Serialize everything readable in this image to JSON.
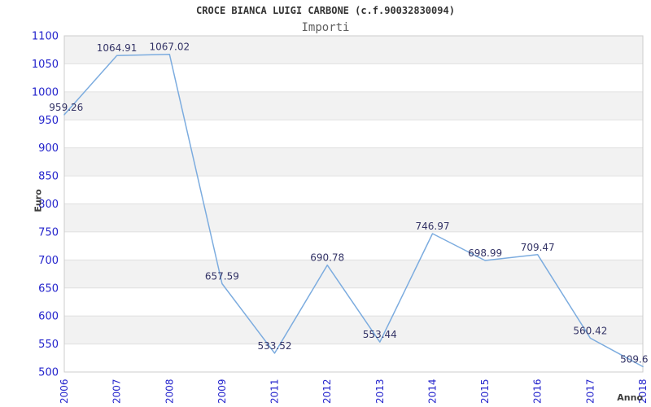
{
  "header": {
    "title": "CROCE BIANCA LUIGI CARBONE (c.f.90032830094)",
    "subtitle": "Importi"
  },
  "chart_data": {
    "type": "line",
    "title": "CROCE BIANCA LUIGI CARBONE (c.f.90032830094)",
    "subtitle": "Importi",
    "xlabel": "Anno",
    "ylabel": "Euro",
    "categories": [
      "2006",
      "2007",
      "2008",
      "2009",
      "2011",
      "2012",
      "2013",
      "2014",
      "2015",
      "2016",
      "2017",
      "2018"
    ],
    "values": [
      959.26,
      1064.91,
      1067.02,
      657.59,
      533.52,
      690.78,
      553.44,
      746.97,
      698.99,
      709.47,
      560.42,
      509.6
    ],
    "point_labels": [
      "959.26",
      "1064.91",
      "1067.02",
      "657.59",
      "533.52",
      "690.78",
      "553.44",
      "746.97",
      "698.99",
      "709.47",
      "560.42",
      "509.6"
    ],
    "ylim": [
      500,
      1100
    ],
    "ytick_step": 50,
    "yticks": [
      "500",
      "550",
      "600",
      "650",
      "700",
      "750",
      "800",
      "850",
      "900",
      "950",
      "1000",
      "1050",
      "1100"
    ],
    "grid": "horizontal",
    "legend_position": "none",
    "colors": {
      "line": "#7cacdf",
      "band_dark": "#f2f2f2",
      "band_light": "#ffffff",
      "gridline": "#e0e0e0",
      "border": "#cccccc",
      "tick_label": "#2424cc",
      "data_label": "#333366"
    }
  }
}
